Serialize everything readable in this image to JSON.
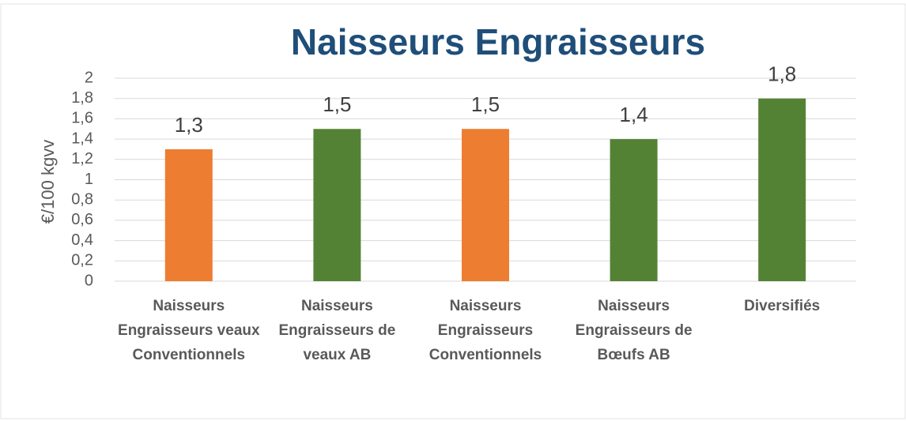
{
  "chart_data": {
    "type": "bar",
    "title": "Naisseurs Engraisseurs",
    "y_label": "€/100 kgvv",
    "categories": [
      "Naisseurs Engraisseurs veaux Conventionnels",
      "Naisseurs Engraisseurs de veaux AB",
      "Naisseurs Engraisseurs Conventionnels",
      "Naisseurs Engraisseurs de Bœufs AB",
      "Diversifiés"
    ],
    "values": [
      1.3,
      1.5,
      1.5,
      1.4,
      1.8
    ],
    "value_labels": [
      "1,3",
      "1,5",
      "1,5",
      "1,4",
      "1,8"
    ],
    "colors": [
      "#ed7d31",
      "#548235",
      "#ed7d31",
      "#548235",
      "#548235"
    ],
    "ylim": [
      0,
      2
    ],
    "yticks": [
      0,
      {
        "value": 0.2,
        "label": "0,2"
      },
      {
        "value": 0.4,
        "label": "0,4"
      },
      {
        "value": 0.6,
        "label": "0,6"
      },
      {
        "value": 0.8,
        "label": "0,8"
      },
      1,
      {
        "value": 1.2,
        "label": "1,2"
      },
      {
        "value": 1.4,
        "label": "1,4"
      },
      {
        "value": 1.6,
        "label": "1,6"
      },
      {
        "value": 1.8,
        "label": "1,8"
      },
      2
    ],
    "grid": true
  }
}
